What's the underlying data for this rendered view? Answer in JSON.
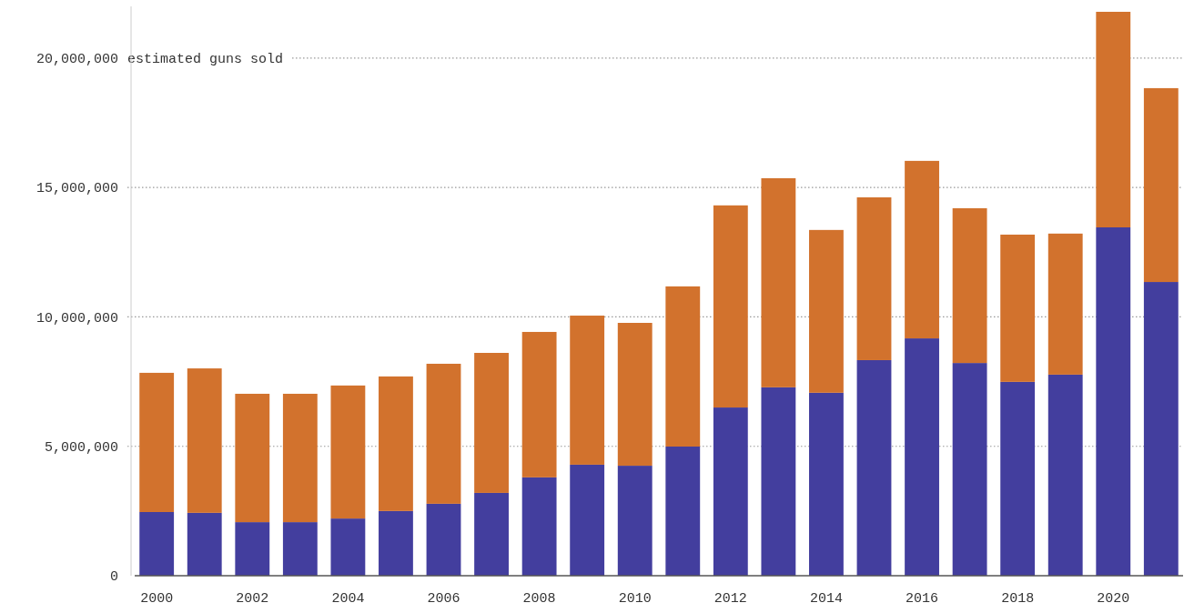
{
  "chart_data": {
    "type": "bar",
    "stacked": true,
    "grid": "y",
    "categories": [
      "2000",
      null,
      "2002",
      null,
      "2004",
      null,
      "2006",
      null,
      "2008",
      null,
      "2010",
      null,
      "2012",
      null,
      "2014",
      null,
      "2016",
      null,
      "2018",
      null,
      "2020",
      null
    ],
    "series": [
      {
        "color": "#433e9e",
        "values": [
          2460000,
          2430000,
          2070000,
          2070000,
          2210000,
          2500000,
          2780000,
          3200000,
          3800000,
          4290000,
          4250000,
          4990000,
          6500000,
          7280000,
          7070000,
          8330000,
          9170000,
          8220000,
          7490000,
          7770000,
          13460000,
          11350000
        ]
      },
      {
        "color": "#d2722d",
        "values": [
          5380000,
          5580000,
          4960000,
          4960000,
          5140000,
          5200000,
          5410000,
          5410000,
          5620000,
          5760000,
          5520000,
          6190000,
          7810000,
          8080000,
          6290000,
          6290000,
          6860000,
          5980000,
          5690000,
          5450000,
          8330000,
          7490000
        ]
      }
    ],
    "ylim": [
      0,
      22000000
    ],
    "yticks": [
      0,
      {
        "value": 5000000,
        "label": "5,000,000"
      },
      {
        "value": 10000000,
        "label": "10,000,000"
      },
      {
        "value": 15000000,
        "label": "15,000,000"
      },
      {
        "value": 20000000,
        "label": "20,000,000"
      }
    ],
    "ylabel": "estimated guns sold"
  }
}
